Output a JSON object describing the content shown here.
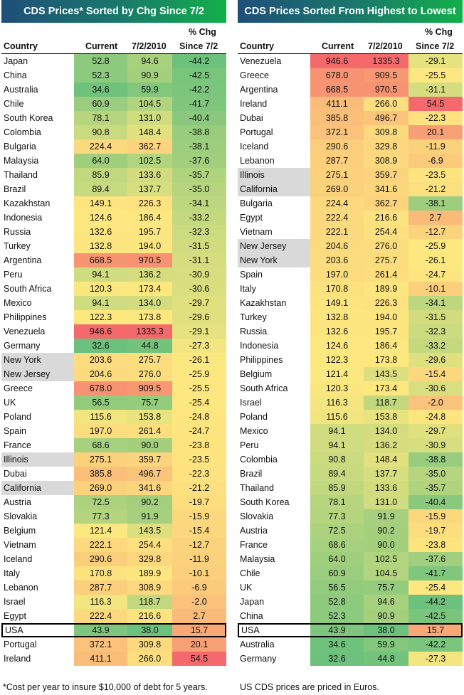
{
  "left": {
    "title": "CDS Prices* Sorted by Chg Since 7/2",
    "headers": {
      "country": "Country",
      "current": "Current",
      "prior": "7/2/2010",
      "chg1": "% Chg",
      "chg2": "Since 7/2"
    },
    "rows": [
      [
        "Japan",
        "52.8",
        "94.6",
        "-44.2"
      ],
      [
        "China",
        "52.3",
        "90.9",
        "-42.5"
      ],
      [
        "Australia",
        "34.6",
        "59.9",
        "-42.2"
      ],
      [
        "Chile",
        "60.9",
        "104.5",
        "-41.7"
      ],
      [
        "South Korea",
        "78.1",
        "131.0",
        "-40.4"
      ],
      [
        "Colombia",
        "90.8",
        "148.4",
        "-38.8"
      ],
      [
        "Bulgaria",
        "224.4",
        "362.7",
        "-38.1"
      ],
      [
        "Malaysia",
        "64.0",
        "102.5",
        "-37.6"
      ],
      [
        "Thailand",
        "85.9",
        "133.6",
        "-35.7"
      ],
      [
        "Brazil",
        "89.4",
        "137.7",
        "-35.0"
      ],
      [
        "Kazakhstan",
        "149.1",
        "226.3",
        "-34.1"
      ],
      [
        "Indonesia",
        "124.6",
        "186.4",
        "-33.2"
      ],
      [
        "Russia",
        "132.6",
        "195.7",
        "-32.3"
      ],
      [
        "Turkey",
        "132.8",
        "194.0",
        "-31.5"
      ],
      [
        "Argentina",
        "668.5",
        "970.5",
        "-31.1"
      ],
      [
        "Peru",
        "94.1",
        "136.2",
        "-30.9"
      ],
      [
        "South Africa",
        "120.3",
        "173.4",
        "-30.6"
      ],
      [
        "Mexico",
        "94.1",
        "134.0",
        "-29.7"
      ],
      [
        "Philippines",
        "122.3",
        "173.8",
        "-29.6"
      ],
      [
        "Venezuela",
        "946.6",
        "1335.3",
        "-29.1"
      ],
      [
        "Germany",
        "32.6",
        "44.8",
        "-27.3"
      ],
      [
        "New York",
        "203.6",
        "275.7",
        "-26.1"
      ],
      [
        "New Jersey",
        "204.6",
        "276.0",
        "-25.9"
      ],
      [
        "Greece",
        "678.0",
        "909.5",
        "-25.5"
      ],
      [
        "UK",
        "56.5",
        "75.7",
        "-25.4"
      ],
      [
        "Poland",
        "115.6",
        "153.8",
        "-24.8"
      ],
      [
        "Spain",
        "197.0",
        "261.4",
        "-24.7"
      ],
      [
        "France",
        "68.6",
        "90.0",
        "-23.8"
      ],
      [
        "Illinois",
        "275.1",
        "359.7",
        "-23.5"
      ],
      [
        "Dubai",
        "385.8",
        "496.7",
        "-22.3"
      ],
      [
        "California",
        "269.0",
        "341.6",
        "-21.2"
      ],
      [
        "Austria",
        "72.5",
        "90.2",
        "-19.7"
      ],
      [
        "Slovakia",
        "77.3",
        "91.9",
        "-15.9"
      ],
      [
        "Belgium",
        "121.4",
        "143.5",
        "-15.4"
      ],
      [
        "Vietnam",
        "222.1",
        "254.4",
        "-12.7"
      ],
      [
        "Iceland",
        "290.6",
        "329.8",
        "-11.9"
      ],
      [
        "Italy",
        "170.8",
        "189.9",
        "-10.1"
      ],
      [
        "Lebanon",
        "287.7",
        "308.9",
        "-6.9"
      ],
      [
        "Israel",
        "116.3",
        "118.7",
        "-2.0"
      ],
      [
        "Egypt",
        "222.4",
        "216.6",
        "2.7"
      ],
      [
        "USA",
        "43.9",
        "38.0",
        "15.7"
      ],
      [
        "Portugal",
        "372.1",
        "309.8",
        "20.1"
      ],
      [
        "Ireland",
        "411.1",
        "266.0",
        "54.5"
      ]
    ]
  },
  "right": {
    "title": "CDS Prices Sorted From Highest to Lowest",
    "headers": {
      "country": "Country",
      "current": "Current",
      "prior": "7/2/2010",
      "chg1": "% Chg",
      "chg2": "Since 7/2"
    },
    "rows": [
      [
        "Venezuela",
        "946.6",
        "1335.3",
        "-29.1"
      ],
      [
        "Greece",
        "678.0",
        "909.5",
        "-25.5"
      ],
      [
        "Argentina",
        "668.5",
        "970.5",
        "-31.1"
      ],
      [
        "Ireland",
        "411.1",
        "266.0",
        "54.5"
      ],
      [
        "Dubai",
        "385.8",
        "496.7",
        "-22.3"
      ],
      [
        "Portugal",
        "372.1",
        "309.8",
        "20.1"
      ],
      [
        "Iceland",
        "290.6",
        "329.8",
        "-11.9"
      ],
      [
        "Lebanon",
        "287.7",
        "308.9",
        "-6.9"
      ],
      [
        "Illinois",
        "275.1",
        "359.7",
        "-23.5"
      ],
      [
        "California",
        "269.0",
        "341.6",
        "-21.2"
      ],
      [
        "Bulgaria",
        "224.4",
        "362.7",
        "-38.1"
      ],
      [
        "Egypt",
        "222.4",
        "216.6",
        "2.7"
      ],
      [
        "Vietnam",
        "222.1",
        "254.4",
        "-12.7"
      ],
      [
        "New Jersey",
        "204.6",
        "276.0",
        "-25.9"
      ],
      [
        "New York",
        "203.6",
        "275.7",
        "-26.1"
      ],
      [
        "Spain",
        "197.0",
        "261.4",
        "-24.7"
      ],
      [
        "Italy",
        "170.8",
        "189.9",
        "-10.1"
      ],
      [
        "Kazakhstan",
        "149.1",
        "226.3",
        "-34.1"
      ],
      [
        "Turkey",
        "132.8",
        "194.0",
        "-31.5"
      ],
      [
        "Russia",
        "132.6",
        "195.7",
        "-32.3"
      ],
      [
        "Indonesia",
        "124.6",
        "186.4",
        "-33.2"
      ],
      [
        "Philippines",
        "122.3",
        "173.8",
        "-29.6"
      ],
      [
        "Belgium",
        "121.4",
        "143.5",
        "-15.4"
      ],
      [
        "South Africa",
        "120.3",
        "173.4",
        "-30.6"
      ],
      [
        "Israel",
        "116.3",
        "118.7",
        "-2.0"
      ],
      [
        "Poland",
        "115.6",
        "153.8",
        "-24.8"
      ],
      [
        "Mexico",
        "94.1",
        "134.0",
        "-29.7"
      ],
      [
        "Peru",
        "94.1",
        "136.2",
        "-30.9"
      ],
      [
        "Colombia",
        "90.8",
        "148.4",
        "-38.8"
      ],
      [
        "Brazil",
        "89.4",
        "137.7",
        "-35.0"
      ],
      [
        "Thailand",
        "85.9",
        "133.6",
        "-35.7"
      ],
      [
        "South Korea",
        "78.1",
        "131.0",
        "-40.4"
      ],
      [
        "Slovakia",
        "77.3",
        "91.9",
        "-15.9"
      ],
      [
        "Austria",
        "72.5",
        "90.2",
        "-19.7"
      ],
      [
        "France",
        "68.6",
        "90.0",
        "-23.8"
      ],
      [
        "Malaysia",
        "64.0",
        "102.5",
        "-37.6"
      ],
      [
        "Chile",
        "60.9",
        "104.5",
        "-41.7"
      ],
      [
        "UK",
        "56.5",
        "75.7",
        "-25.4"
      ],
      [
        "Japan",
        "52.8",
        "94.6",
        "-44.2"
      ],
      [
        "China",
        "52.3",
        "90.9",
        "-42.5"
      ],
      [
        "USA",
        "43.9",
        "38.0",
        "15.7"
      ],
      [
        "Australia",
        "34.6",
        "59.9",
        "-42.2"
      ],
      [
        "Germany",
        "32.6",
        "44.8",
        "-27.3"
      ]
    ]
  },
  "highlight_countries": [
    "New York",
    "New Jersey",
    "Illinois",
    "California"
  ],
  "boxed_country": "USA",
  "footnotes": {
    "left": "*Cost per year to insure $10,000 of debt for 5 years.",
    "right": "US CDS prices are priced in Euros."
  },
  "colors": {
    "low": "#6cc17c",
    "mid": "#fde880",
    "high": "#f46a6c",
    "state_gray": "#d9d9d9"
  },
  "chart_data": {
    "type": "table",
    "columns": [
      "Country",
      "Current",
      "7/2/2010",
      "% Chg Since 7/2"
    ]
  }
}
